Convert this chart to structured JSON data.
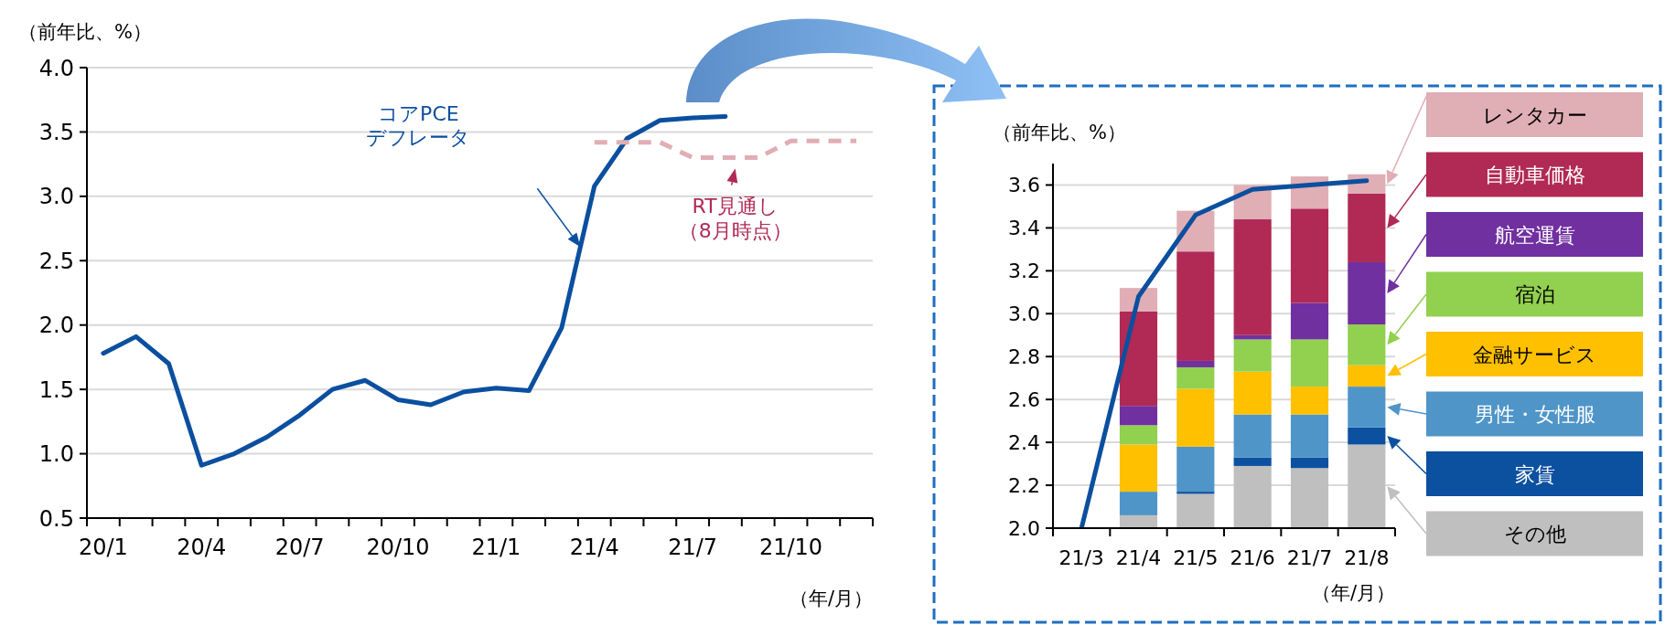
{
  "chart_data": [
    {
      "type": "line",
      "xlabel": "（年/月）",
      "ylabel": "（前年比、%）",
      "categories": [
        "20/1",
        null,
        null,
        "20/4",
        null,
        null,
        "20/7",
        null,
        null,
        "20/10",
        null,
        null,
        "21/1",
        null,
        null,
        "21/4",
        null,
        null,
        "21/7",
        null,
        null,
        "21/10",
        null,
        null
      ],
      "ylim": [
        0.5,
        4.0
      ],
      "yticks": [
        {
          "value": 0.5,
          "label": "0.5"
        },
        {
          "value": 1,
          "label": "1.0"
        },
        {
          "value": 1.5,
          "label": "1.5"
        },
        {
          "value": 2,
          "label": "2.0"
        },
        {
          "value": 2.5,
          "label": "2.5"
        },
        {
          "value": 3,
          "label": "3.0"
        },
        {
          "value": 3.5,
          "label": "3.5"
        },
        {
          "value": 4,
          "label": "4.0"
        }
      ],
      "grid": "y",
      "legend": false,
      "series": [
        {
          "name": "コアPCE\nデフレータ",
          "color": "#0b4f9f",
          "values": [
            1.78,
            1.91,
            1.7,
            0.91,
            1.0,
            1.13,
            1.3,
            1.5,
            1.57,
            1.42,
            1.38,
            1.48,
            1.51,
            1.49,
            1.98,
            3.08,
            3.45,
            3.59,
            3.61,
            3.62,
            null,
            null,
            null,
            null
          ]
        },
        {
          "name": "RT見通し（8月時点）",
          "color": "#e0aeb5",
          "line_style": "dashed",
          "values": [
            null,
            null,
            null,
            null,
            null,
            null,
            null,
            null,
            null,
            null,
            null,
            null,
            null,
            null,
            null,
            3.42,
            3.42,
            3.42,
            3.3,
            3.3,
            3.3,
            3.43,
            3.43,
            3.43
          ]
        }
      ]
    },
    {
      "type": "bar",
      "xlabel": "（年/月）",
      "ylabel": "（前年比、%）",
      "categories": [
        "21/3",
        "21/4",
        "21/5",
        "21/6",
        "21/7",
        "21/8"
      ],
      "ylim": [
        2.0,
        3.7
      ],
      "yticks": [
        {
          "value": 2,
          "label": "2.0"
        },
        {
          "value": 2.2,
          "label": "2.2"
        },
        {
          "value": 2.4,
          "label": "2.4"
        },
        {
          "value": 2.6,
          "label": "2.6"
        },
        {
          "value": 2.8,
          "label": "2.8"
        },
        {
          "value": 3,
          "label": "3.0"
        },
        {
          "value": 3.2,
          "label": "3.2"
        },
        {
          "value": 3.4,
          "label": "3.4"
        },
        {
          "value": 3.6,
          "label": "3.6"
        }
      ],
      "grid": "y",
      "legend": "right",
      "series": [
        {
          "name": "その他",
          "color": "#bfbfbf",
          "base": [
            null,
            2.0,
            2.0,
            2.0,
            2.0,
            2.0
          ],
          "values": [
            null,
            0.06,
            0.16,
            0.29,
            0.28,
            0.39
          ]
        },
        {
          "name": "家賃",
          "color": "#0c50a0",
          "base": [
            null,
            null,
            2.16,
            2.29,
            2.28,
            2.39
          ],
          "values": [
            null,
            null,
            0.01,
            0.04,
            0.05,
            0.08
          ]
        },
        {
          "name": "男性・女性服",
          "color": "#4f95c8",
          "base": [
            null,
            2.06,
            2.17,
            2.33,
            2.33,
            2.47
          ],
          "values": [
            null,
            0.11,
            0.21,
            0.2,
            0.2,
            0.19
          ]
        },
        {
          "name": "金融サービス",
          "color": "#ffc000",
          "base": [
            null,
            2.17,
            2.38,
            2.53,
            2.53,
            2.66
          ],
          "values": [
            null,
            0.22,
            0.27,
            0.2,
            0.13,
            0.1
          ]
        },
        {
          "name": "宿泊",
          "color": "#92d050",
          "base": [
            null,
            2.39,
            2.65,
            2.73,
            2.66,
            2.76
          ],
          "values": [
            null,
            0.09,
            0.1,
            0.15,
            0.22,
            0.19
          ]
        },
        {
          "name": "航空運賃",
          "color": "#7030a0",
          "base": [
            null,
            2.48,
            2.75,
            2.88,
            2.88,
            2.95
          ],
          "values": [
            null,
            0.09,
            0.03,
            0.02,
            0.17,
            0.29
          ]
        },
        {
          "name": "自動車価格",
          "color": "#b02a55",
          "base": [
            null,
            2.57,
            2.78,
            2.9,
            3.05,
            3.24
          ],
          "values": [
            null,
            0.44,
            0.51,
            0.54,
            0.44,
            0.32
          ]
        },
        {
          "name": "レンタカー",
          "color": "#e0aeb5",
          "base": [
            null,
            3.01,
            3.29,
            3.44,
            3.49,
            3.56
          ],
          "values": [
            null,
            0.11,
            0.19,
            0.16,
            0.15,
            0.09
          ]
        },
        {
          "type": "line",
          "color": "#0b4f9f",
          "values": [
            2.0,
            3.08,
            3.46,
            3.58,
            3.6,
            3.62
          ]
        }
      ]
    }
  ]
}
